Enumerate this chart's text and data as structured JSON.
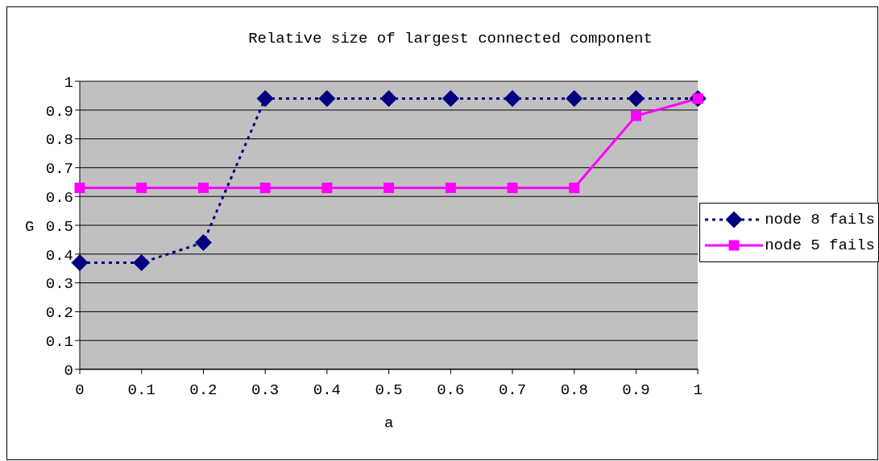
{
  "chart_data": {
    "type": "line",
    "title": "Relative size of largest connected component",
    "xlabel": "a",
    "ylabel": "G",
    "categories": [
      "0",
      "0.1",
      "0.2",
      "0.3",
      "0.4",
      "0.5",
      "0.6",
      "0.7",
      "0.8",
      "0.9",
      "1"
    ],
    "series": [
      {
        "name": "node 8 fails",
        "color": "#000080",
        "marker": "diamond",
        "line_style": "dotted",
        "values": [
          0.37,
          0.37,
          0.44,
          0.94,
          0.94,
          0.94,
          0.94,
          0.94,
          0.94,
          0.94,
          0.94
        ]
      },
      {
        "name": "node 5 fails",
        "color": "#ff00ff",
        "marker": "square",
        "line_style": "solid",
        "values": [
          0.63,
          0.63,
          0.63,
          0.63,
          0.63,
          0.63,
          0.63,
          0.63,
          0.63,
          0.88,
          0.94
        ]
      }
    ],
    "ylim": [
      0,
      1
    ],
    "yticks": [
      0,
      0.1,
      0.2,
      0.3,
      0.4,
      0.5,
      0.6,
      0.7,
      0.8,
      0.9,
      1
    ],
    "grid": "y",
    "legend": "right"
  }
}
